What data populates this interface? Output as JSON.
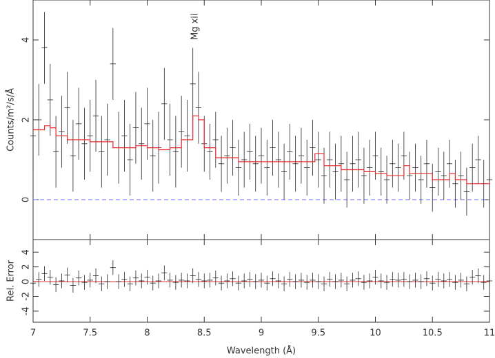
{
  "chart_data": [
    {
      "type": "errorbar",
      "ylabel": "Counts/m²/s/Å",
      "annotation": {
        "text": "Mg xii",
        "x": 8.42,
        "y": 4.0
      },
      "xlim": [
        7,
        11
      ],
      "xticks": [
        7,
        7.5,
        8,
        8.5,
        9,
        9.5,
        10,
        10.5,
        11
      ],
      "ylim": [
        -1,
        5
      ],
      "yticks": [
        0,
        2,
        4
      ],
      "hline": 0,
      "hline_color": "#6a6aff",
      "color": "#222222",
      "x": [
        7.0,
        7.05,
        7.1,
        7.15,
        7.2,
        7.25,
        7.3,
        7.35,
        7.4,
        7.45,
        7.5,
        7.55,
        7.6,
        7.65,
        7.7,
        7.75,
        7.8,
        7.85,
        7.9,
        7.95,
        8.0,
        8.05,
        8.1,
        8.15,
        8.2,
        8.25,
        8.3,
        8.35,
        8.4,
        8.45,
        8.5,
        8.55,
        8.6,
        8.65,
        8.7,
        8.75,
        8.8,
        8.85,
        8.9,
        8.95,
        9.0,
        9.05,
        9.1,
        9.15,
        9.2,
        9.25,
        9.3,
        9.35,
        9.4,
        9.45,
        9.5,
        9.55,
        9.6,
        9.65,
        9.7,
        9.75,
        9.8,
        9.85,
        9.9,
        9.95,
        10.0,
        10.05,
        10.1,
        10.15,
        10.2,
        10.25,
        10.3,
        10.35,
        10.4,
        10.45,
        10.5,
        10.55,
        10.6,
        10.65,
        10.7,
        10.75,
        10.8,
        10.85,
        10.9,
        10.95,
        11.0
      ],
      "values": [
        1.6,
        2.0,
        3.8,
        2.5,
        1.2,
        1.7,
        2.3,
        1.1,
        1.9,
        1.4,
        1.6,
        2.1,
        1.2,
        1.5,
        3.4,
        1.3,
        1.6,
        1.0,
        1.8,
        1.4,
        1.9,
        1.1,
        1.3,
        2.4,
        1.5,
        1.2,
        1.7,
        1.6,
        2.9,
        2.3,
        1.4,
        1.2,
        1.5,
        0.9,
        1.1,
        1.3,
        0.8,
        1.0,
        1.2,
        0.9,
        1.1,
        0.8,
        1.3,
        1.0,
        0.7,
        1.2,
        0.9,
        1.1,
        0.8,
        1.3,
        1.0,
        0.6,
        1.0,
        0.7,
        0.9,
        0.5,
        0.9,
        1.0,
        0.6,
        0.8,
        1.1,
        0.7,
        0.5,
        0.9,
        0.8,
        1.1,
        0.6,
        0.8,
        0.5,
        0.9,
        0.3,
        0.7,
        0.6,
        0.9,
        0.4,
        0.6,
        0.2,
        0.8,
        1.0,
        0.4,
        0.5
      ],
      "errors": [
        0.9,
        0.9,
        0.9,
        0.9,
        0.9,
        0.9,
        0.9,
        0.9,
        0.9,
        0.9,
        0.9,
        0.9,
        0.9,
        0.9,
        0.9,
        0.9,
        0.9,
        0.9,
        0.9,
        0.9,
        0.9,
        0.9,
        0.9,
        0.9,
        0.9,
        0.9,
        0.9,
        0.9,
        0.9,
        0.9,
        0.7,
        0.7,
        0.7,
        0.7,
        0.7,
        0.7,
        0.7,
        0.7,
        0.7,
        0.7,
        0.7,
        0.7,
        0.7,
        0.7,
        0.7,
        0.7,
        0.7,
        0.7,
        0.7,
        0.7,
        0.7,
        0.7,
        0.7,
        0.7,
        0.7,
        0.7,
        0.7,
        0.7,
        0.7,
        0.7,
        0.6,
        0.6,
        0.6,
        0.6,
        0.6,
        0.6,
        0.6,
        0.6,
        0.6,
        0.6,
        0.6,
        0.6,
        0.6,
        0.6,
        0.6,
        0.6,
        0.6,
        0.6,
        0.6,
        0.6,
        0.6
      ],
      "model": {
        "color": "#e8262a",
        "x": [
          7.0,
          7.1,
          7.15,
          7.2,
          7.3,
          7.5,
          7.7,
          7.9,
          8.0,
          8.1,
          8.2,
          8.3,
          8.4,
          8.45,
          8.5,
          8.6,
          8.8,
          9.0,
          9.2,
          9.4,
          9.47,
          9.55,
          9.7,
          9.9,
          10.0,
          10.1,
          10.25,
          10.3,
          10.5,
          10.6,
          10.65,
          10.7,
          10.8,
          11.0
        ],
        "values": [
          1.75,
          1.85,
          1.8,
          1.6,
          1.5,
          1.45,
          1.3,
          1.35,
          1.3,
          1.25,
          1.3,
          1.5,
          2.1,
          2.0,
          1.3,
          1.05,
          0.95,
          0.95,
          0.95,
          0.95,
          1.15,
          0.85,
          0.75,
          0.7,
          0.65,
          0.6,
          0.85,
          0.65,
          0.5,
          0.5,
          0.65,
          0.5,
          0.4,
          0.45
        ]
      }
    },
    {
      "type": "errorbar",
      "xlabel": "Wavelength (Å)",
      "ylabel": "Rel. Error",
      "xlim": [
        7,
        11
      ],
      "xticks": [
        7,
        7.5,
        8,
        8.5,
        9,
        9.5,
        10,
        10.5,
        11
      ],
      "ylim": [
        -5.5,
        5.7
      ],
      "yticks": [
        -4,
        -2,
        0,
        2,
        4
      ],
      "hline": 0,
      "hline_color": "#e8262a",
      "color": "#222222",
      "x": [
        7.0,
        7.05,
        7.1,
        7.15,
        7.2,
        7.25,
        7.3,
        7.35,
        7.4,
        7.45,
        7.5,
        7.55,
        7.6,
        7.65,
        7.7,
        7.75,
        7.8,
        7.85,
        7.9,
        7.95,
        8.0,
        8.05,
        8.1,
        8.15,
        8.2,
        8.25,
        8.3,
        8.35,
        8.4,
        8.45,
        8.5,
        8.55,
        8.6,
        8.65,
        8.7,
        8.75,
        8.8,
        8.85,
        8.9,
        8.95,
        9.0,
        9.05,
        9.1,
        9.15,
        9.2,
        9.25,
        9.3,
        9.35,
        9.4,
        9.45,
        9.5,
        9.55,
        9.6,
        9.65,
        9.7,
        9.75,
        9.8,
        9.85,
        9.9,
        9.95,
        10.0,
        10.05,
        10.1,
        10.15,
        10.2,
        10.25,
        10.3,
        10.35,
        10.4,
        10.45,
        10.5,
        10.55,
        10.6,
        10.65,
        10.7,
        10.75,
        10.8,
        10.85,
        10.9,
        10.95,
        11.0
      ],
      "values": [
        -0.2,
        0.3,
        1.1,
        0.6,
        -0.4,
        0.1,
        0.9,
        -0.5,
        0.5,
        -0.1,
        0.2,
        0.8,
        -0.3,
        0.0,
        1.9,
        0.0,
        0.3,
        -0.3,
        0.5,
        0.1,
        0.6,
        -0.2,
        0.1,
        1.2,
        0.2,
        -0.1,
        0.2,
        0.1,
        0.8,
        0.3,
        0.1,
        0.2,
        0.5,
        -0.2,
        0.1,
        0.4,
        -0.2,
        0.1,
        0.3,
        0.0,
        0.2,
        -0.2,
        0.4,
        0.1,
        -0.3,
        0.3,
        0.0,
        0.2,
        -0.1,
        0.2,
        0.0,
        -0.3,
        0.3,
        0.0,
        0.2,
        -0.3,
        0.2,
        0.4,
        -0.1,
        0.1,
        0.6,
        0.1,
        -0.1,
        0.3,
        0.2,
        0.3,
        0.0,
        0.2,
        0.0,
        0.4,
        -0.2,
        0.3,
        0.1,
        0.3,
        -0.1,
        0.2,
        -0.3,
        0.6,
        0.8,
        -0.1,
        0.1
      ],
      "errors": [
        1,
        1,
        1,
        1,
        1,
        1,
        1,
        1,
        1,
        1,
        1,
        1,
        1,
        1,
        1,
        1,
        1,
        1,
        1,
        1,
        1,
        1,
        1,
        1,
        1,
        1,
        1,
        1,
        1,
        1,
        1,
        1,
        1,
        1,
        1,
        1,
        1,
        1,
        1,
        1,
        1,
        1,
        1,
        1,
        1,
        1,
        1,
        1,
        1,
        1,
        1,
        1,
        1,
        1,
        1,
        1,
        1,
        1,
        1,
        1,
        1,
        1,
        1,
        1,
        1,
        1,
        1,
        1,
        1,
        1,
        1,
        1,
        1,
        1,
        1,
        1,
        1,
        1,
        1,
        1,
        1
      ]
    }
  ]
}
